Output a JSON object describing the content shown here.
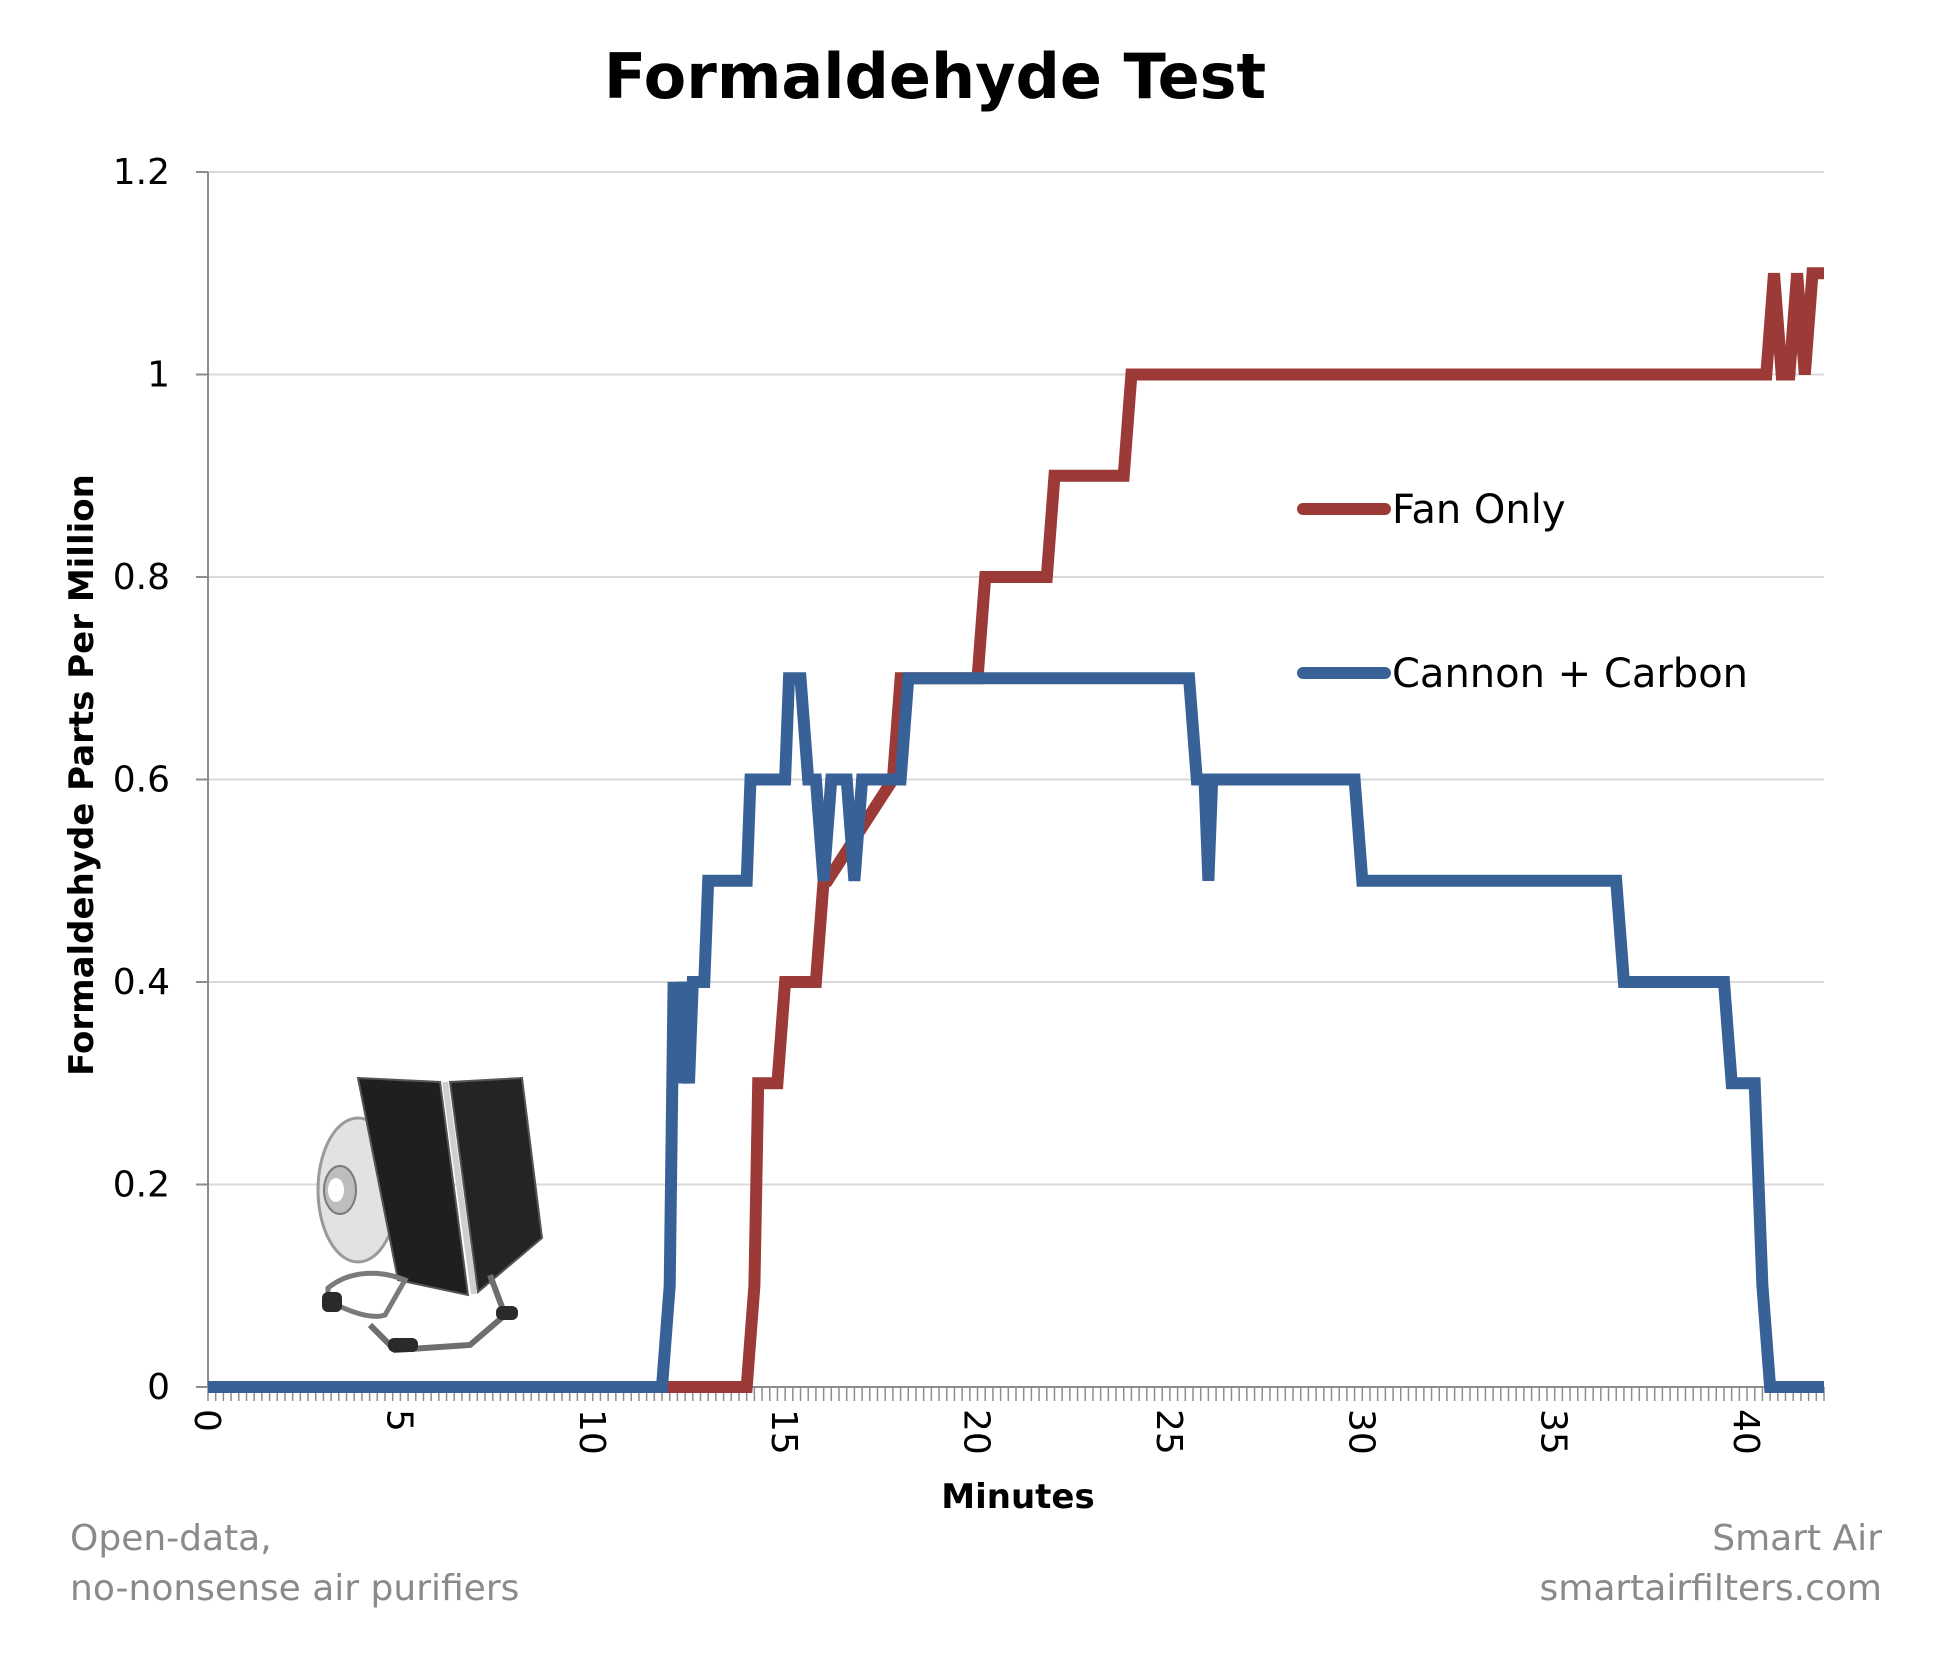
{
  "chart_data": {
    "type": "line",
    "title": "Formaldehyde Test",
    "xlabel": "Minutes",
    "ylabel": "Formaldehyde Parts Per Million",
    "xlim": [
      0,
      42
    ],
    "ylim": [
      0,
      1.2
    ],
    "xticks": [
      0,
      5,
      10,
      15,
      20,
      25,
      30,
      35,
      40
    ],
    "yticks": [
      0,
      0.2,
      0.4,
      0.6,
      0.8,
      1,
      1.2
    ],
    "ytick_labels": [
      "0",
      "0.2",
      "0.4",
      "0.6",
      "0.8",
      "1",
      "1.2"
    ],
    "grid": true,
    "legend_position": "right",
    "series": [
      {
        "name": "Fan Only",
        "color": "#9b3a36",
        "x": [
          0,
          12,
          14,
          14.2,
          14.3,
          14.8,
          15,
          15.8,
          16,
          16.1,
          17.8,
          18,
          18.3,
          20,
          20.2,
          21.8,
          22,
          23.8,
          24,
          40.5,
          40.7,
          40.9,
          41.1,
          41.3,
          41.5,
          41.7,
          41.9,
          42
        ],
        "y": [
          0,
          0,
          0,
          0.1,
          0.3,
          0.3,
          0.4,
          0.4,
          0.5,
          0.5,
          0.6,
          0.7,
          0.7,
          0.7,
          0.8,
          0.8,
          0.9,
          0.9,
          1.0,
          1.0,
          1.1,
          1.0,
          1.0,
          1.1,
          1.0,
          1.1,
          1.1,
          1.1
        ]
      },
      {
        "name": "Cannon + Carbon",
        "color": "#386297",
        "x": [
          0,
          11.8,
          12,
          12.1,
          12.2,
          12.3,
          12.5,
          12.6,
          12.7,
          12.9,
          13,
          13.1,
          14,
          14.1,
          15,
          15.1,
          15.4,
          15.6,
          15.8,
          16,
          16.2,
          16.4,
          16.6,
          16.8,
          17,
          18,
          18.2,
          25.5,
          25.7,
          25.9,
          26,
          26.1,
          29.8,
          30,
          36.6,
          36.8,
          39.4,
          39.6,
          40.2,
          40.4,
          40.6,
          42
        ],
        "y": [
          0,
          0,
          0.1,
          0.4,
          0.3,
          0.4,
          0.3,
          0.4,
          0.4,
          0.4,
          0.5,
          0.5,
          0.5,
          0.6,
          0.6,
          0.7,
          0.7,
          0.6,
          0.6,
          0.5,
          0.6,
          0.6,
          0.6,
          0.5,
          0.6,
          0.6,
          0.7,
          0.7,
          0.6,
          0.6,
          0.5,
          0.6,
          0.6,
          0.5,
          0.5,
          0.4,
          0.4,
          0.3,
          0.3,
          0.1,
          0,
          0
        ]
      }
    ]
  },
  "legend": {
    "items": [
      {
        "label": "Fan Only",
        "color": "#9b3a36"
      },
      {
        "label": "Cannon + Carbon",
        "color": "#386297"
      }
    ]
  },
  "footer": {
    "left_line1": "Open-data,",
    "left_line2": "no-nonsense air purifiers",
    "right_line1": "Smart Air",
    "right_line2": "smartairfilters.com"
  },
  "image": {
    "icon": "air-purifier-product-photo"
  }
}
